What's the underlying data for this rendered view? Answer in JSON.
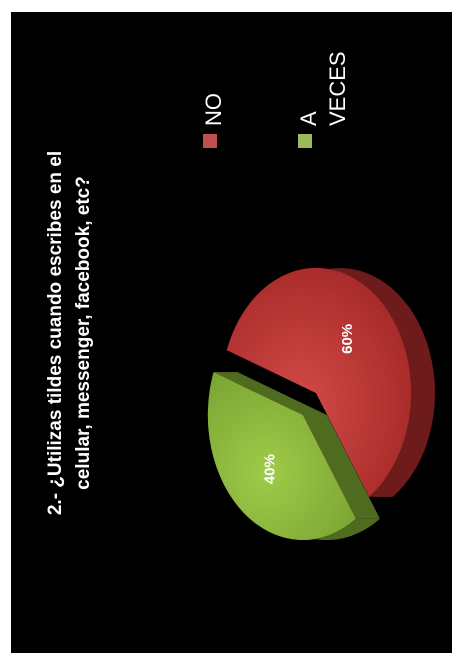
{
  "chart_data": {
    "type": "pie",
    "title_lines": [
      "2.- ¿Utilizas tildes cuando escribes en el",
      "celular, messenger, facebook, etc?"
    ],
    "categories": [
      "NO",
      "A VECES"
    ],
    "values": [
      60,
      40
    ],
    "data_labels": [
      "60%",
      "40%"
    ],
    "legend": [
      {
        "label_lines": [
          "NO"
        ],
        "color": "#c0504d"
      },
      {
        "label_lines": [
          "A",
          "VECES"
        ],
        "color": "#9bbb59"
      }
    ],
    "colors": {
      "no_top": "#c33a39",
      "no_side": "#6e1b1c",
      "aveces_top": "#8fbb3c",
      "aveces_side": "#4e6b20"
    },
    "orientation": "rotated-90-ccw",
    "style": "3d-exploded"
  }
}
